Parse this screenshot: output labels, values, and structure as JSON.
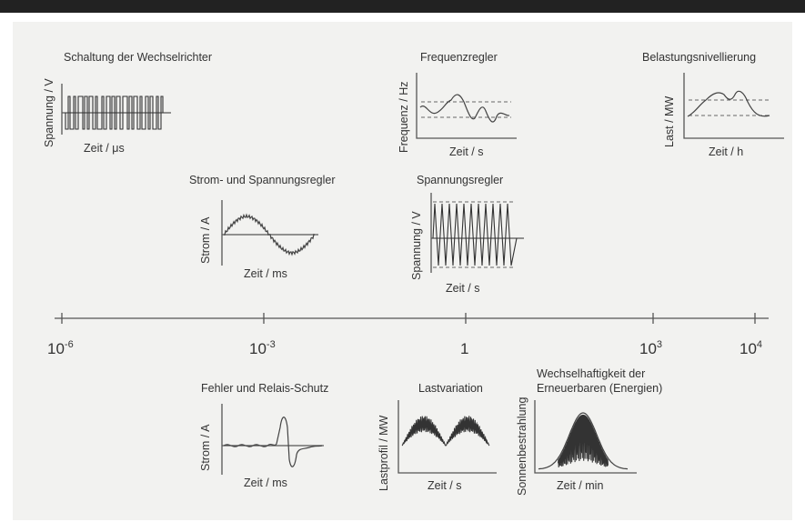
{
  "timeline": {
    "ticks": [
      {
        "base": "10",
        "exp": "-6"
      },
      {
        "base": "10",
        "exp": "-3"
      },
      {
        "base": "1",
        "exp": ""
      },
      {
        "base": "10",
        "exp": "3"
      },
      {
        "base": "10",
        "exp": "4"
      }
    ]
  },
  "panels": {
    "inverter": {
      "title": "Schaltung der Wechselrichter",
      "ylabel": "Spannung / V",
      "xlabel": "Zeit / μs"
    },
    "frequency": {
      "title": "Frequenzregler",
      "ylabel": "Frequenz / Hz",
      "xlabel": "Zeit / s"
    },
    "load_leveling": {
      "title": "Belastungsnivellierung",
      "ylabel": "Last / MW",
      "xlabel": "Zeit / h"
    },
    "current_voltage": {
      "title": "Strom- und Spannungsregler",
      "ylabel": "Strom / A",
      "xlabel": "Zeit / ms"
    },
    "voltage": {
      "title": "Spannungsregler",
      "ylabel": "Spannung / V",
      "xlabel": "Zeit / s"
    },
    "fault": {
      "title": "Fehler und Relais-Schutz",
      "ylabel": "Strom / A",
      "xlabel": "Zeit / ms"
    },
    "load_variation": {
      "title": "Lastvariation",
      "ylabel": "Lastprofil / MW",
      "xlabel": "Zeit / s"
    },
    "renewables": {
      "title_line1": "Wechselhaftigkeit der",
      "title_line2": "Erneuerbaren (Energien)",
      "ylabel": "Sonnenbestrahlung",
      "xlabel": "Zeit / min"
    }
  }
}
